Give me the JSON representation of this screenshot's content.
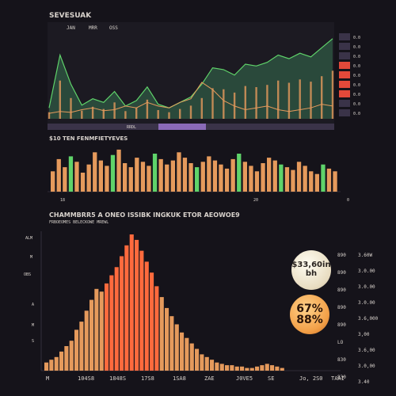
{
  "colors": {
    "background": "#15131a",
    "bar_warm": "#e59a5c",
    "bar_hot": "#ff6a3d",
    "line_green": "#5fd36a",
    "area_green": "#2f5a44",
    "label": "#d8d2cc",
    "red_accent": "#e2493a"
  },
  "top_panel": {
    "title": "SEVESUAK",
    "header_ticks": [
      "JAN",
      "MRR",
      "OSS"
    ],
    "right_ticks": [
      "0.0",
      "0.0",
      "0.0",
      "0.0",
      "0.0",
      "0.0",
      "0.0",
      "0.0",
      "0.0"
    ],
    "strip_label": "RRDL"
  },
  "mid_panel": {
    "title": "$10 TEN FENMFIETYEVES",
    "x_ticks": [
      "18",
      "20",
      "0"
    ]
  },
  "bottom_panel": {
    "title": "CHAMMBRR5 A ONEO ISSIBK INGKUK ETOR AEOWOE9",
    "subtitle": "FRBOEOMES BELECKOWE MREWL",
    "left_ticks": [
      "ALM",
      "M",
      "OBS",
      "A",
      "M",
      "S"
    ],
    "x_ticks": [
      "M",
      "104S8",
      "1848S",
      "17S8",
      "1SA8",
      "ZAE",
      "J0VE5",
      "SE",
      "Jo, 2S0",
      "TAAI"
    ],
    "badge_a_line1": "$33,60in",
    "badge_a_line2": "bh",
    "badge_b_line1": "67%",
    "badge_b_line2": "88%",
    "right_left_col": [
      "890",
      "890",
      "890",
      "890",
      "890",
      "LO",
      "830",
      "830"
    ],
    "right_right_col": [
      "3.60W",
      "3.0.00",
      "3.0.00",
      "3.0.00",
      "3.6,000",
      "3,00",
      "3.6,00",
      "3.0,00",
      "3.40"
    ]
  },
  "chart_data": [
    {
      "type": "area",
      "title": "SEVESUAK",
      "series": [
        {
          "values": [
            12,
            70,
            38,
            15,
            22,
            18,
            30,
            14,
            20,
            35,
            16,
            12,
            18,
            24,
            38,
            56,
            54,
            48,
            60,
            58,
            62,
            70,
            66,
            72,
            68,
            78,
            88
          ]
        },
        {
          "values": [
            6,
            8,
            7,
            10,
            12,
            9,
            10,
            14,
            12,
            18,
            14,
            12,
            18,
            22,
            40,
            32,
            20,
            14,
            10,
            12,
            14,
            10,
            8,
            10,
            12,
            16,
            14
          ]
        }
      ]
    },
    {
      "type": "bar",
      "title": "$10 TEN FENMFIETYEVES",
      "values": [
        30,
        48,
        36,
        52,
        44,
        28,
        40,
        58,
        46,
        38,
        54,
        62,
        42,
        36,
        50,
        44,
        38,
        56,
        48,
        40,
        46,
        58,
        50,
        42,
        36,
        44,
        52,
        46,
        40,
        34,
        48,
        56,
        44,
        38,
        30,
        42,
        50,
        46,
        40,
        36,
        32,
        44,
        38,
        30,
        26,
        40,
        34,
        30
      ]
    },
    {
      "type": "bar",
      "title": "CHAMMBRR5 A ONEO ISSIBK INGKUK ETOR AEOWOE9",
      "values": [
        6,
        8,
        10,
        14,
        18,
        22,
        30,
        36,
        44,
        52,
        60,
        58,
        64,
        70,
        76,
        84,
        92,
        100,
        96,
        88,
        80,
        72,
        62,
        54,
        46,
        40,
        34,
        28,
        24,
        20,
        16,
        12,
        10,
        8,
        6,
        5,
        4,
        4,
        3,
        3,
        2,
        2,
        3,
        4,
        5,
        4,
        3,
        2
      ]
    }
  ]
}
